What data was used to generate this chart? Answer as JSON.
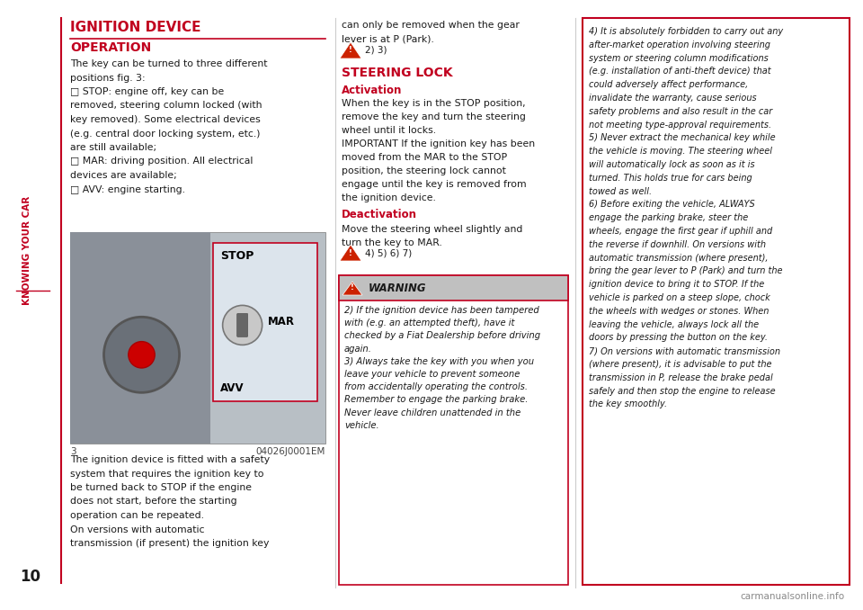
{
  "bg_color": "#ffffff",
  "page_number": "10",
  "sidebar_text": "KNOWING YOUR CAR",
  "sidebar_color": "#c1001f",
  "title1": "IGNITION DEVICE",
  "title1_color": "#c1001f",
  "subtitle1": "OPERATION",
  "subtitle1_color": "#c1001f",
  "fig_caption": "3",
  "fig_code": "04026J0001EM",
  "col2_alert": "2) 3)",
  "col2_title2": "STEERING LOCK",
  "col2_title2_color": "#c1001f",
  "col2_activation": "Activation",
  "col2_activation_color": "#c1001f",
  "col2_deactivation": "Deactivation",
  "col2_deactivation_color": "#c1001f",
  "col2_alert2": "4) 5) 6) 7)",
  "warning_header": "WARNING",
  "footer_watermark": "carmanualsonline.info"
}
